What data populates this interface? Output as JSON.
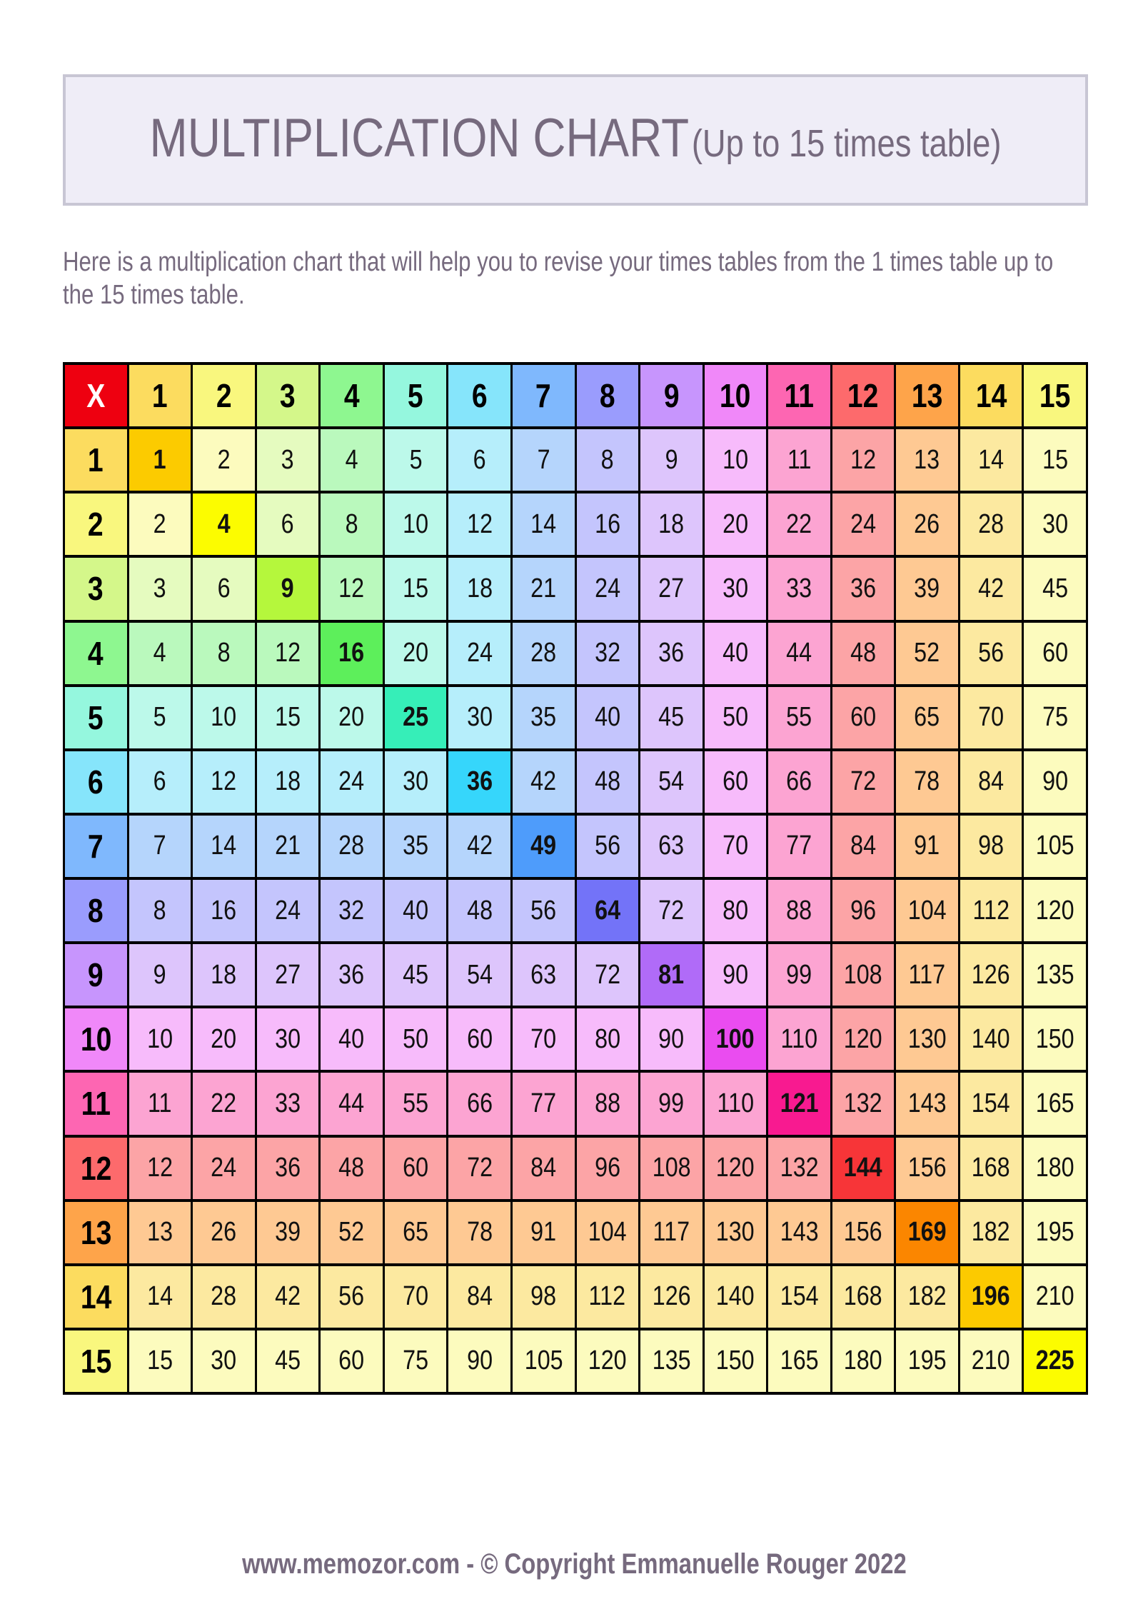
{
  "title": {
    "main": "MULTIPLICATION CHART",
    "sub": "(Up to 15 times table)"
  },
  "description": "Here is a multiplication chart that will help you to revise your times tables from the 1 times table up to the 15 times table.",
  "table": {
    "corner_label": "X",
    "column_headers": [
      "1",
      "2",
      "3",
      "4",
      "5",
      "6",
      "7",
      "8",
      "9",
      "10",
      "11",
      "12",
      "13",
      "14",
      "15"
    ],
    "row_headers": [
      "1",
      "2",
      "3",
      "4",
      "5",
      "6",
      "7",
      "8",
      "9",
      "10",
      "11",
      "12",
      "13",
      "14",
      "15"
    ],
    "rows": [
      [
        1,
        2,
        3,
        4,
        5,
        6,
        7,
        8,
        9,
        10,
        11,
        12,
        13,
        14,
        15
      ],
      [
        2,
        4,
        6,
        8,
        10,
        12,
        14,
        16,
        18,
        20,
        22,
        24,
        26,
        28,
        30
      ],
      [
        3,
        6,
        9,
        12,
        15,
        18,
        21,
        24,
        27,
        30,
        33,
        36,
        39,
        42,
        45
      ],
      [
        4,
        8,
        12,
        16,
        20,
        24,
        28,
        32,
        36,
        40,
        44,
        48,
        52,
        56,
        60
      ],
      [
        5,
        10,
        15,
        20,
        25,
        30,
        35,
        40,
        45,
        50,
        55,
        60,
        65,
        70,
        75
      ],
      [
        6,
        12,
        18,
        24,
        30,
        36,
        42,
        48,
        54,
        60,
        66,
        72,
        78,
        84,
        90
      ],
      [
        7,
        14,
        21,
        28,
        35,
        42,
        49,
        56,
        63,
        70,
        77,
        84,
        91,
        98,
        105
      ],
      [
        8,
        16,
        24,
        32,
        40,
        48,
        56,
        64,
        72,
        80,
        88,
        96,
        104,
        112,
        120
      ],
      [
        9,
        18,
        27,
        36,
        45,
        54,
        63,
        72,
        81,
        90,
        99,
        108,
        117,
        126,
        135
      ],
      [
        10,
        20,
        30,
        40,
        50,
        60,
        70,
        80,
        90,
        100,
        110,
        120,
        130,
        140,
        150
      ],
      [
        11,
        22,
        33,
        44,
        55,
        66,
        77,
        88,
        99,
        110,
        121,
        132,
        143,
        154,
        165
      ],
      [
        12,
        24,
        36,
        48,
        60,
        72,
        84,
        96,
        108,
        120,
        132,
        144,
        156,
        168,
        180
      ],
      [
        13,
        26,
        39,
        52,
        65,
        78,
        91,
        104,
        117,
        130,
        143,
        156,
        169,
        182,
        195
      ],
      [
        14,
        28,
        42,
        56,
        70,
        84,
        98,
        112,
        126,
        140,
        154,
        168,
        182,
        196,
        210
      ],
      [
        15,
        30,
        45,
        60,
        75,
        90,
        105,
        120,
        135,
        150,
        165,
        180,
        195,
        210,
        225
      ]
    ],
    "colors": {
      "corner": "#ee0010",
      "header": [
        "#fcdc5f",
        "#f9f77e",
        "#d4f78a",
        "#8ef790",
        "#95f7de",
        "#86e5fb",
        "#7fb8fd",
        "#9a9cfd",
        "#c795fd",
        "#f088f9",
        "#fd66b2",
        "#fd6a6c",
        "#fea44a",
        "#fcdc5f",
        "#f9f77e"
      ],
      "light": [
        "#fce9a0",
        "#fcfbbe",
        "#e5fbbf",
        "#baf9bd",
        "#bcf9ea",
        "#b6eefb",
        "#b5d5fc",
        "#c4c5fd",
        "#ddc5fc",
        "#f7bbfb",
        "#fca4d2",
        "#fca4a6",
        "#fec993",
        "#fce9a0",
        "#fcfbbe"
      ],
      "diagonal": [
        "#fccb00",
        "#fcfc00",
        "#b5f73c",
        "#5def5b",
        "#36eeb8",
        "#36d6fb",
        "#4e9cfb",
        "#7373f8",
        "#b06bf8",
        "#ea4cf0",
        "#f81a90",
        "#f73538",
        "#fb8600",
        "#fcca00",
        "#fcfc00"
      ]
    }
  },
  "footer": {
    "site": "www.memozor.com",
    "separator": " - ",
    "copyright": "© Copyright Emmanuelle Rouger 2022"
  }
}
